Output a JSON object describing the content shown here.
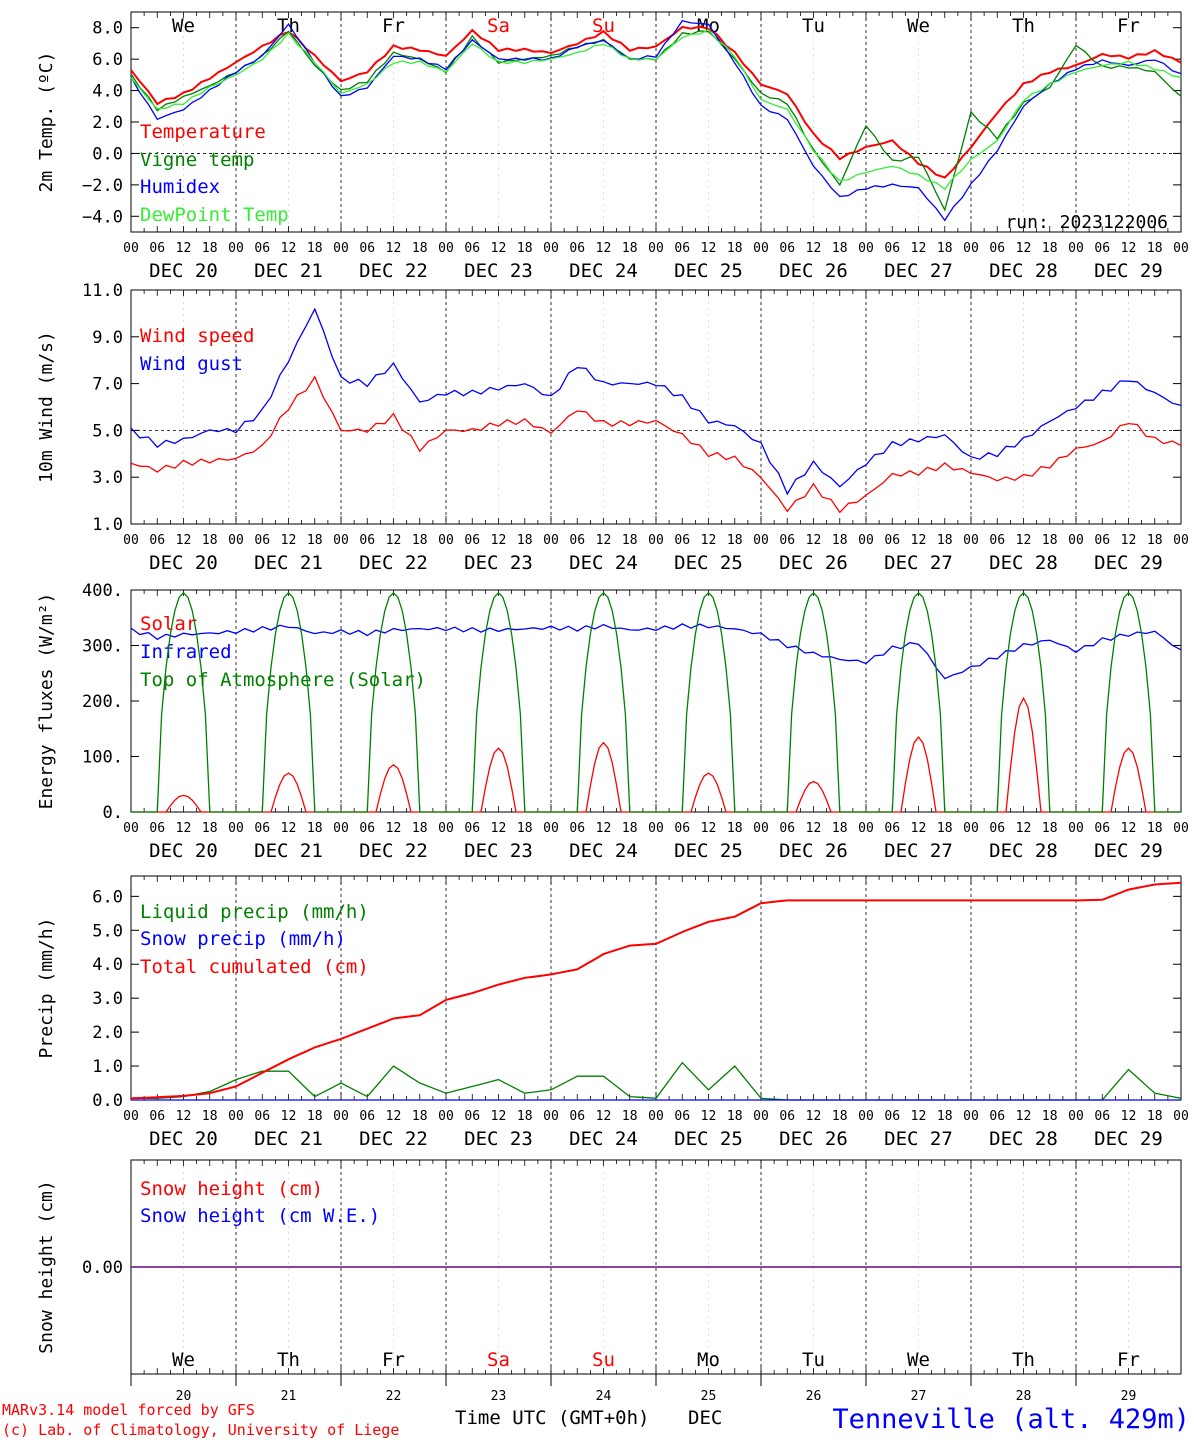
{
  "days_of_week": [
    {
      "label": "We",
      "color": "#000000"
    },
    {
      "label": "Th",
      "color": "#000000"
    },
    {
      "label": "Fr",
      "color": "#000000"
    },
    {
      "label": "Sa",
      "color": "#ff0000"
    },
    {
      "label": "Su",
      "color": "#ff0000"
    },
    {
      "label": "Mo",
      "color": "#000000"
    },
    {
      "label": "Tu",
      "color": "#000000"
    },
    {
      "label": "We",
      "color": "#000000"
    },
    {
      "label": "Th",
      "color": "#000000"
    },
    {
      "label": "Fr",
      "color": "#000000"
    }
  ],
  "date_labels": [
    "DEC 20",
    "DEC 21",
    "DEC 22",
    "DEC 23",
    "DEC 24",
    "DEC 25",
    "DEC 26",
    "DEC 27",
    "DEC 28",
    "DEC 29"
  ],
  "hour_ticks": [
    "00",
    "06",
    "12",
    "18"
  ],
  "final_hour_tick": "00",
  "day_numbers": [
    "20",
    "21",
    "22",
    "23",
    "24",
    "25",
    "26",
    "27",
    "28",
    "29"
  ],
  "footer": {
    "model_line": "MARv3.14 model forced by GFS",
    "lab_line": "(c) Lab. of Climatology, University of Liege",
    "xlabel": "Time UTC (GMT+0h)",
    "month": "DEC",
    "station": "Tenneville (alt. 429m)"
  },
  "run_label": "run: 2023122006",
  "chart_data": [
    {
      "id": "temperature",
      "type": "line",
      "ylabel": "2m Temp. (ºC)",
      "ylim": [
        -5,
        9
      ],
      "yticks": [
        -4,
        -2,
        0,
        2,
        4,
        6,
        8
      ],
      "ytick_labels": [
        "−4.0",
        "−2.0",
        "0.0",
        "2.0",
        "4.0",
        "6.0",
        "8.0"
      ],
      "ref_line": 0,
      "x_unit": "hours since DEC 20 00 UTC",
      "series": [
        {
          "name": "Temperature",
          "color": "#ff0000",
          "x": [
            0,
            6,
            12,
            18,
            24,
            30,
            36,
            42,
            48,
            54,
            60,
            66,
            72,
            78,
            84,
            90,
            96,
            102,
            108,
            114,
            120,
            126,
            132,
            138,
            144,
            150,
            156,
            162,
            168,
            174,
            180,
            186,
            192,
            198,
            204,
            210,
            216,
            222,
            228,
            234,
            240
          ],
          "y": [
            5.3,
            3.2,
            3.8,
            4.8,
            5.8,
            6.8,
            7.8,
            6.2,
            4.6,
            5.2,
            6.8,
            6.6,
            6.2,
            7.8,
            6.6,
            6.6,
            6.4,
            7.0,
            7.7,
            6.6,
            6.8,
            8.0,
            8.0,
            6.4,
            4.4,
            3.8,
            1.2,
            -0.3,
            0.4,
            0.8,
            -0.6,
            -1.6,
            0.4,
            2.6,
            4.4,
            5.2,
            5.6,
            6.3,
            6.1,
            6.5,
            5.8
          ]
        },
        {
          "name": "Vigne temp",
          "color": "#008000",
          "x": [
            0,
            6,
            12,
            18,
            24,
            30,
            36,
            42,
            48,
            54,
            60,
            66,
            72,
            78,
            84,
            90,
            96,
            102,
            108,
            114,
            120,
            126,
            132,
            138,
            144,
            150,
            156,
            162,
            168,
            174,
            180,
            186,
            192,
            198,
            204,
            210,
            216,
            222,
            228,
            234,
            240
          ],
          "y": [
            5.0,
            2.8,
            3.6,
            4.3,
            5.2,
            6.2,
            7.8,
            5.6,
            4.0,
            4.6,
            6.4,
            6.0,
            5.2,
            7.4,
            5.8,
            6.0,
            6.2,
            6.8,
            7.2,
            6.0,
            6.0,
            7.6,
            7.8,
            6.0,
            3.8,
            3.2,
            0.2,
            -2.0,
            1.8,
            -0.5,
            -0.2,
            -3.6,
            2.6,
            1.0,
            3.2,
            4.2,
            6.9,
            5.5,
            5.5,
            5.2,
            3.6
          ]
        },
        {
          "name": "Humidex",
          "color": "#0000ff",
          "x": [
            0,
            6,
            12,
            18,
            24,
            30,
            36,
            42,
            48,
            54,
            60,
            66,
            72,
            78,
            84,
            90,
            96,
            102,
            108,
            114,
            120,
            126,
            132,
            138,
            144,
            150,
            156,
            162,
            168,
            174,
            180,
            186,
            192,
            198,
            204,
            210,
            216,
            222,
            228,
            234,
            240
          ],
          "y": [
            4.8,
            2.2,
            2.8,
            4.0,
            5.2,
            6.2,
            8.2,
            5.8,
            3.6,
            4.2,
            6.2,
            6.0,
            5.4,
            7.2,
            6.0,
            6.0,
            6.0,
            6.8,
            7.2,
            6.0,
            6.2,
            8.4,
            8.2,
            5.8,
            3.0,
            2.2,
            -0.8,
            -2.8,
            -2.2,
            -2.0,
            -2.2,
            -4.2,
            -2.0,
            0.2,
            3.0,
            4.4,
            5.4,
            5.9,
            5.6,
            6.0,
            5.0
          ]
        },
        {
          "name": "DewPoint Temp",
          "color": "#33ee33",
          "x": [
            0,
            6,
            12,
            18,
            24,
            30,
            36,
            42,
            48,
            54,
            60,
            66,
            72,
            78,
            84,
            90,
            96,
            102,
            108,
            114,
            120,
            126,
            132,
            138,
            144,
            150,
            156,
            162,
            168,
            174,
            180,
            186,
            192,
            198,
            204,
            210,
            216,
            222,
            228,
            234,
            240
          ],
          "y": [
            4.8,
            2.8,
            3.2,
            4.2,
            5.0,
            6.0,
            7.6,
            5.8,
            3.8,
            4.4,
            5.8,
            5.8,
            5.2,
            7.0,
            5.8,
            5.8,
            6.0,
            6.4,
            7.0,
            6.0,
            6.0,
            7.4,
            7.8,
            6.2,
            3.4,
            2.8,
            0.2,
            -1.8,
            -1.2,
            -0.8,
            -1.4,
            -2.2,
            -0.4,
            0.8,
            3.4,
            4.4,
            5.2,
            5.6,
            5.8,
            5.4,
            4.8
          ]
        }
      ]
    },
    {
      "id": "wind",
      "type": "line",
      "ylabel": "10m Wind (m/s)",
      "ylim": [
        1,
        11
      ],
      "yticks": [
        1,
        3,
        5,
        7,
        9,
        11
      ],
      "ytick_labels": [
        "1.0",
        "3.0",
        "5.0",
        "7.0",
        "9.0",
        "11.0"
      ],
      "ref_line": 5,
      "series": [
        {
          "name": "Wind speed",
          "color": "#ff0000",
          "x": [
            0,
            6,
            12,
            18,
            24,
            30,
            36,
            42,
            48,
            54,
            60,
            66,
            72,
            78,
            84,
            90,
            96,
            102,
            108,
            114,
            120,
            126,
            132,
            138,
            144,
            150,
            156,
            162,
            168,
            174,
            180,
            186,
            192,
            198,
            204,
            210,
            216,
            222,
            228,
            234,
            240
          ],
          "y": [
            3.6,
            3.3,
            3.6,
            3.7,
            3.8,
            4.3,
            6.0,
            7.2,
            5.0,
            5.0,
            5.6,
            4.2,
            5.0,
            5.0,
            5.3,
            5.4,
            4.9,
            5.9,
            5.3,
            5.3,
            5.4,
            4.8,
            4.0,
            3.8,
            3.0,
            1.6,
            2.6,
            1.6,
            2.2,
            3.1,
            3.2,
            3.5,
            3.2,
            2.9,
            3.0,
            3.5,
            4.2,
            4.5,
            5.4,
            4.6,
            4.4
          ]
        },
        {
          "name": "Wind gust",
          "color": "#0000ff",
          "x": [
            0,
            6,
            12,
            18,
            24,
            30,
            36,
            42,
            48,
            54,
            60,
            66,
            72,
            78,
            84,
            90,
            96,
            102,
            108,
            114,
            120,
            126,
            132,
            138,
            144,
            150,
            156,
            162,
            168,
            174,
            180,
            186,
            192,
            198,
            204,
            210,
            216,
            222,
            228,
            234,
            240
          ],
          "y": [
            5.0,
            4.4,
            4.6,
            5.0,
            5.0,
            5.8,
            8.0,
            10.2,
            7.2,
            7.0,
            7.8,
            6.2,
            6.6,
            6.6,
            6.8,
            7.0,
            6.4,
            7.8,
            7.0,
            7.0,
            7.0,
            6.4,
            5.4,
            5.2,
            4.4,
            2.4,
            3.6,
            2.6,
            3.6,
            4.4,
            4.6,
            4.8,
            3.8,
            4.0,
            4.6,
            5.4,
            6.0,
            6.6,
            7.2,
            6.6,
            6.0
          ]
        }
      ]
    },
    {
      "id": "energy",
      "type": "line",
      "ylabel": "Energy fluxes (W/m²)",
      "ylim": [
        0,
        400
      ],
      "yticks": [
        0,
        100,
        200,
        300,
        400
      ],
      "ytick_labels": [
        "0.",
        "100.",
        "200.",
        "300.",
        "400."
      ],
      "series": [
        {
          "name": "Solar",
          "color": "#ff0000",
          "peaks": [
            {
              "day": 0,
              "value": 30
            },
            {
              "day": 1,
              "value": 70
            },
            {
              "day": 2,
              "value": 85
            },
            {
              "day": 3,
              "value": 115
            },
            {
              "day": 4,
              "value": 125
            },
            {
              "day": 5,
              "value": 70
            },
            {
              "day": 6,
              "value": 55
            },
            {
              "day": 7,
              "value": 135
            },
            {
              "day": 8,
              "value": 205
            },
            {
              "day": 9,
              "value": 115
            }
          ]
        },
        {
          "name": "Infrared",
          "color": "#0000ff",
          "x": [
            0,
            6,
            12,
            18,
            24,
            30,
            36,
            42,
            48,
            54,
            60,
            66,
            72,
            78,
            84,
            90,
            96,
            102,
            108,
            114,
            120,
            126,
            132,
            138,
            144,
            150,
            156,
            162,
            168,
            174,
            180,
            186,
            192,
            198,
            204,
            210,
            216,
            222,
            228,
            234,
            240
          ],
          "y": [
            328,
            315,
            320,
            322,
            325,
            330,
            335,
            322,
            325,
            322,
            328,
            330,
            330,
            328,
            328,
            330,
            332,
            330,
            335,
            328,
            330,
            335,
            335,
            330,
            320,
            300,
            285,
            275,
            270,
            295,
            305,
            240,
            260,
            280,
            300,
            310,
            290,
            310,
            320,
            325,
            290
          ]
        },
        {
          "name": "Top of Atmosphere (Solar)",
          "color": "#008000",
          "peak": 395
        }
      ]
    },
    {
      "id": "precip",
      "type": "line",
      "ylabel": "Precip (mm/h)",
      "ylim": [
        0,
        6.6
      ],
      "yticks": [
        0,
        1,
        2,
        3,
        4,
        5,
        6
      ],
      "ytick_labels": [
        "0.0",
        "1.0",
        "2.0",
        "3.0",
        "4.0",
        "5.0",
        "6.0"
      ],
      "series": [
        {
          "name": "Liquid precip (mm/h)",
          "color": "#008000",
          "x": [
            0,
            6,
            12,
            18,
            24,
            30,
            36,
            42,
            48,
            54,
            60,
            66,
            72,
            78,
            84,
            90,
            96,
            102,
            108,
            114,
            120,
            126,
            132,
            138,
            144,
            150,
            156,
            162,
            168,
            174,
            180,
            186,
            192,
            198,
            204,
            210,
            216,
            222,
            228,
            234,
            240
          ],
          "y": [
            0.05,
            0.05,
            0.1,
            0.25,
            0.6,
            0.85,
            0.85,
            0.1,
            0.5,
            0.1,
            1.0,
            0.5,
            0.2,
            0.4,
            0.6,
            0.2,
            0.3,
            0.7,
            0.7,
            0.1,
            0.05,
            1.1,
            0.3,
            1.0,
            0.05,
            0.0,
            0.0,
            0.0,
            0.0,
            0.0,
            0.0,
            0.0,
            0.0,
            0.0,
            0.0,
            0.0,
            0.0,
            0.0,
            0.9,
            0.2,
            0.05
          ]
        },
        {
          "name": "Snow precip (mm/h)",
          "color": "#0000ff",
          "x": [
            0,
            240
          ],
          "y": [
            0,
            0
          ]
        },
        {
          "name": "Total cumulated (cm)",
          "color": "#ff0000",
          "x": [
            0,
            6,
            12,
            18,
            24,
            30,
            36,
            42,
            48,
            54,
            60,
            66,
            72,
            78,
            84,
            90,
            96,
            102,
            108,
            114,
            120,
            126,
            132,
            138,
            144,
            150,
            156,
            162,
            168,
            174,
            180,
            186,
            192,
            198,
            204,
            210,
            216,
            222,
            228,
            234,
            240
          ],
          "y": [
            0.05,
            0.08,
            0.12,
            0.2,
            0.4,
            0.8,
            1.2,
            1.55,
            1.8,
            2.1,
            2.4,
            2.5,
            2.95,
            3.15,
            3.4,
            3.6,
            3.7,
            3.85,
            4.3,
            4.55,
            4.6,
            4.95,
            5.25,
            5.4,
            5.8,
            5.88,
            5.88,
            5.88,
            5.88,
            5.88,
            5.88,
            5.88,
            5.88,
            5.88,
            5.88,
            5.88,
            5.88,
            5.9,
            6.2,
            6.35,
            6.4
          ]
        }
      ]
    },
    {
      "id": "snow",
      "type": "line",
      "ylabel": "Snow height (cm)",
      "ylim": [
        -1,
        1
      ],
      "yticks": [
        0
      ],
      "ytick_labels": [
        "0.00"
      ],
      "series": [
        {
          "name": "Snow height (cm)",
          "color": "#ff0000",
          "x": [
            0,
            240
          ],
          "y": [
            0,
            0
          ]
        },
        {
          "name": "Snow height (cm W.E.)",
          "color": "#0000ff",
          "x": [
            0,
            240
          ],
          "y": [
            0,
            0
          ]
        }
      ]
    }
  ]
}
